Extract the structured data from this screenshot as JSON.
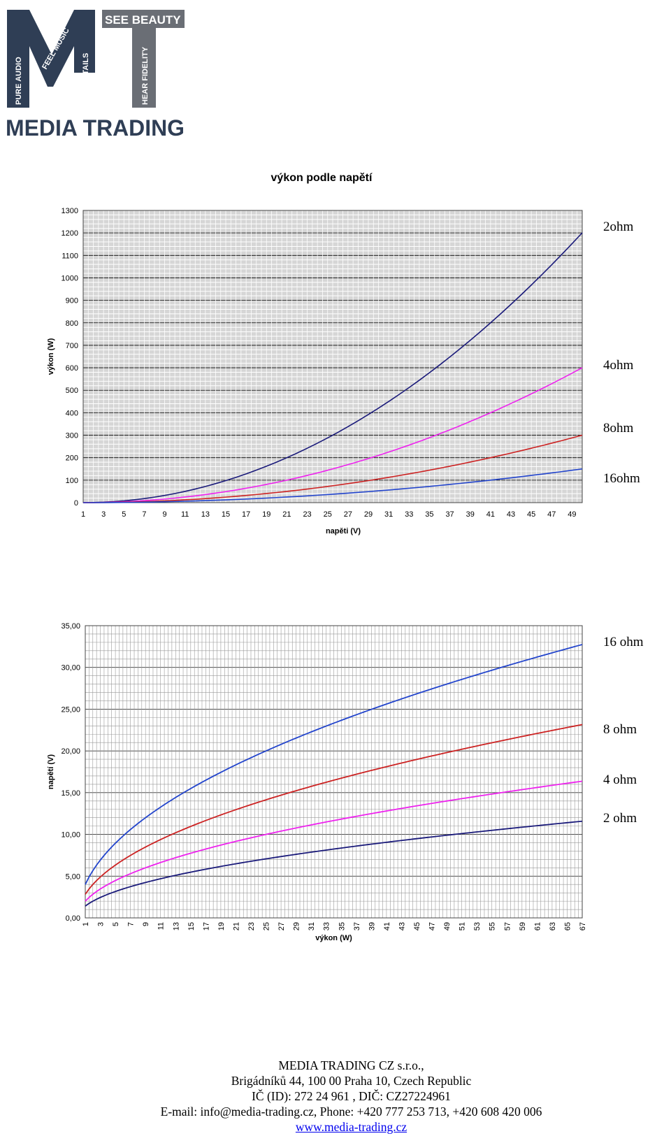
{
  "logo": {
    "company": "MEDIA TRADING",
    "letters": "MT",
    "taglines": [
      "PURE AUDIO",
      "FEEL MUSIC",
      "FINE DETAILS",
      "SEE BEAUTY",
      "HEAR FIDELITY"
    ],
    "colors": {
      "dark": "#2f3e55",
      "gray": "#6a6e75"
    }
  },
  "chart_data": [
    {
      "type": "line",
      "title": "výkon podle napětí",
      "xlabel": "napěti (V)",
      "ylabel": "výkon (W)",
      "x": [
        1,
        2,
        3,
        4,
        5,
        6,
        7,
        8,
        9,
        10,
        11,
        12,
        13,
        14,
        15,
        16,
        17,
        18,
        19,
        20,
        21,
        22,
        23,
        24,
        25,
        26,
        27,
        28,
        29,
        30,
        31,
        32,
        33,
        34,
        35,
        36,
        37,
        38,
        39,
        40,
        41,
        42,
        43,
        44,
        45,
        46,
        47,
        48,
        49,
        50
      ],
      "x_ticks": [
        "1",
        "3",
        "5",
        "7",
        "9",
        "11",
        "13",
        "15",
        "17",
        "19",
        "21",
        "23",
        "25",
        "27",
        "29",
        "31",
        "33",
        "35",
        "37",
        "39",
        "41",
        "43",
        "45",
        "47",
        "49"
      ],
      "y_ticks": [
        "0",
        "100",
        "200",
        "300",
        "400",
        "500",
        "600",
        "700",
        "800",
        "900",
        "1000",
        "1100",
        "1200",
        "1300"
      ],
      "ylim": [
        0,
        1300
      ],
      "xlim": [
        1,
        50
      ],
      "grid": true,
      "legend": "right",
      "series": [
        {
          "name": "2ohm",
          "color": "#1a1a7a",
          "formula_divisor": 2
        },
        {
          "name": "4ohm",
          "color": "#ee22ee",
          "formula_divisor": 4
        },
        {
          "name": "8ohm",
          "color": "#cc2222",
          "formula_divisor": 8
        },
        {
          "name": "16ohm",
          "color": "#2244cc",
          "formula_divisor": 16
        }
      ]
    },
    {
      "type": "line",
      "title": "",
      "xlabel": "výkon (W)",
      "ylabel": "napětí (V)",
      "x_range": [
        1,
        67
      ],
      "x_ticks": [
        "1",
        "3",
        "5",
        "7",
        "9",
        "11",
        "13",
        "15",
        "17",
        "19",
        "21",
        "23",
        "25",
        "27",
        "29",
        "31",
        "33",
        "35",
        "37",
        "39",
        "41",
        "43",
        "45",
        "47",
        "49",
        "51",
        "53",
        "55",
        "57",
        "59",
        "61",
        "63",
        "65",
        "67"
      ],
      "y_ticks": [
        "0,00",
        "5,00",
        "10,00",
        "15,00",
        "20,00",
        "25,00",
        "30,00",
        "35,00"
      ],
      "ylim": [
        0,
        35
      ],
      "grid": true,
      "legend": "right",
      "series": [
        {
          "name": "16 ohm",
          "color": "#2244cc",
          "ohms": 16
        },
        {
          "name": "8 ohm",
          "color": "#cc2222",
          "ohms": 8
        },
        {
          "name": "4 ohm",
          "color": "#ee22ee",
          "ohms": 4
        },
        {
          "name": "2 ohm",
          "color": "#1a1a7a",
          "ohms": 2
        }
      ]
    }
  ],
  "footer": {
    "line1": "MEDIA  TRADING CZ s.r.o.,",
    "line2": "Brigádníků 44, 100 00 Praha 10, Czech Republic",
    "line3": "IČ (ID): 272 24 961 , DIČ: CZ27224961",
    "line4": "E-mail: info@media-trading.cz,    Phone: +420 777 253 713, +420 608 420 006",
    "website": "www.media-trading.cz"
  }
}
